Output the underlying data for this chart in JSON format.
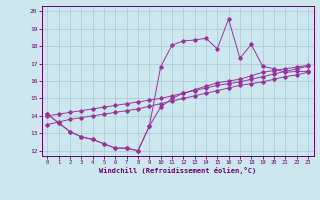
{
  "xlabel": "Windchill (Refroidissement éolien,°C)",
  "xlim": [
    -0.5,
    23.5
  ],
  "ylim": [
    11.7,
    20.3
  ],
  "xticks": [
    0,
    1,
    2,
    3,
    4,
    5,
    6,
    7,
    8,
    9,
    10,
    11,
    12,
    13,
    14,
    15,
    16,
    17,
    18,
    19,
    20,
    21,
    22,
    23
  ],
  "yticks": [
    12,
    13,
    14,
    15,
    16,
    17,
    18,
    19,
    20
  ],
  "bg_color": "#cce8ee",
  "line_color": "#993399",
  "curve1_x": [
    0,
    1,
    2,
    3,
    4,
    5,
    6,
    7,
    8,
    9,
    10,
    11,
    12,
    13,
    14,
    15,
    16,
    17,
    18,
    19,
    20,
    21,
    22,
    23
  ],
  "curve1_y": [
    14.1,
    13.6,
    13.1,
    12.8,
    12.65,
    12.4,
    12.15,
    12.15,
    12.0,
    13.4,
    16.8,
    18.05,
    18.3,
    18.35,
    18.45,
    17.85,
    19.55,
    17.3,
    18.1,
    16.85,
    16.7,
    16.5,
    16.55,
    16.55
  ],
  "curve2_x": [
    0,
    1,
    2,
    3,
    4,
    5,
    6,
    7,
    8,
    9,
    10,
    11,
    12,
    13,
    14,
    15,
    16,
    17,
    18,
    19,
    20,
    21,
    22,
    23
  ],
  "curve2_y": [
    14.0,
    14.1,
    14.2,
    14.3,
    14.4,
    14.5,
    14.6,
    14.7,
    14.8,
    14.9,
    15.0,
    15.15,
    15.3,
    15.45,
    15.6,
    15.75,
    15.85,
    15.95,
    16.1,
    16.25,
    16.4,
    16.55,
    16.7,
    16.85
  ],
  "curve3_x": [
    0,
    1,
    2,
    3,
    4,
    5,
    6,
    7,
    8,
    9,
    10,
    11,
    12,
    13,
    14,
    15,
    16,
    17,
    18,
    19,
    20,
    21,
    22,
    23
  ],
  "curve3_y": [
    13.5,
    13.65,
    13.8,
    13.9,
    14.0,
    14.1,
    14.2,
    14.3,
    14.4,
    14.55,
    14.7,
    14.85,
    15.0,
    15.15,
    15.3,
    15.45,
    15.6,
    15.75,
    15.85,
    15.95,
    16.1,
    16.25,
    16.35,
    16.5
  ],
  "curve4_x": [
    0,
    1,
    2,
    3,
    4,
    5,
    6,
    7,
    8,
    9,
    10,
    11,
    12,
    13,
    14,
    15,
    16,
    17,
    18,
    19,
    20,
    21,
    22,
    23
  ],
  "curve4_y": [
    14.1,
    13.6,
    13.1,
    12.8,
    12.65,
    12.4,
    12.15,
    12.15,
    12.0,
    13.4,
    14.5,
    15.0,
    15.3,
    15.5,
    15.7,
    15.9,
    16.0,
    16.1,
    16.3,
    16.5,
    16.6,
    16.7,
    16.8,
    16.9
  ]
}
